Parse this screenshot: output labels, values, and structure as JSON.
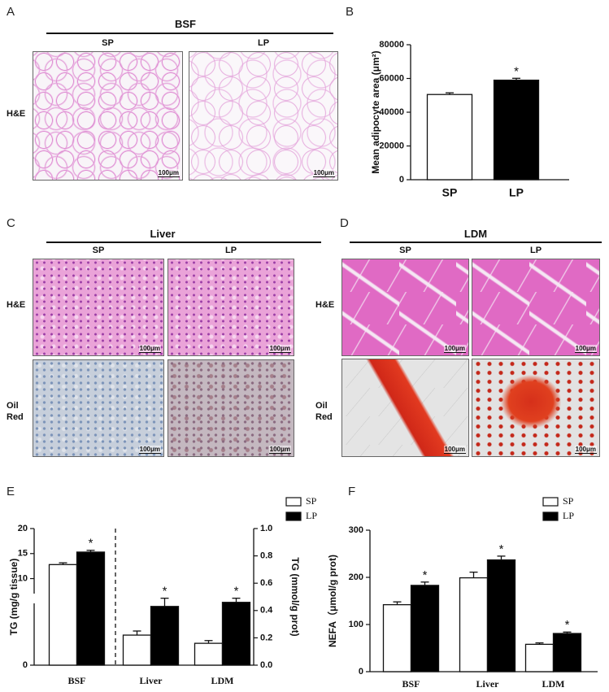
{
  "figure": {
    "A": {
      "label": "A",
      "title": "BSF",
      "columns": [
        "SP",
        "LP"
      ],
      "rows": [
        "H&E"
      ],
      "scale_bar": "100μm"
    },
    "C": {
      "label": "C",
      "title": "Liver",
      "columns": [
        "SP",
        "LP"
      ],
      "rows": [
        "H&E",
        "Oil Red"
      ],
      "scale_bar": "100μm"
    },
    "D": {
      "label": "D",
      "title": "LDM",
      "columns": [
        "SP",
        "LP"
      ],
      "rows": [
        "H&E",
        "Oil Red"
      ],
      "scale_bar": "100μm"
    }
  },
  "chart_data": [
    {
      "panel": "B",
      "type": "bar",
      "ylabel": "Mean adipocyte area (μm²)",
      "categories": [
        "SP",
        "LP"
      ],
      "values": [
        50500,
        59000
      ],
      "errors": [
        1000,
        1100
      ],
      "colors": [
        "#ffffff",
        "#000000"
      ],
      "labels": [
        null,
        "*"
      ],
      "ylim": [
        0,
        80000
      ],
      "yticks": [
        0,
        20000,
        40000,
        60000,
        80000
      ]
    },
    {
      "panel": "E",
      "type": "bar",
      "ylabel": "TG (mg/g tissue)",
      "y2label": "TG (mmol/g prot)",
      "categories": [
        "BSF",
        "Liver",
        "LDM"
      ],
      "category_axis": [
        "y",
        "y2",
        "y2"
      ],
      "series": [
        {
          "name": "SP",
          "color": "#ffffff",
          "values": [
            12.8,
            0.22,
            0.16
          ],
          "errors": [
            0.35,
            0.03,
            0.02
          ]
        },
        {
          "name": "LP",
          "color": "#000000",
          "values": [
            15.3,
            0.43,
            0.46
          ],
          "errors": [
            0.35,
            0.06,
            0.03
          ],
          "labels": [
            "*",
            "*",
            "*"
          ]
        }
      ],
      "ylim": [
        0,
        20
      ],
      "ybreak": [
        5,
        7
      ],
      "yticks": [
        0,
        10,
        15,
        20
      ],
      "y2lim": [
        0,
        1
      ],
      "y2ticks": [
        {
          "value": 0,
          "label": "0.0"
        },
        0.2,
        0.4,
        0.6,
        0.8,
        {
          "value": 1,
          "label": "1.0"
        }
      ],
      "legend": "top-right"
    },
    {
      "panel": "F",
      "type": "bar",
      "ylabel": "NEFA（μmol/g prot)",
      "categories": [
        "BSF",
        "Liver",
        "LDM"
      ],
      "series": [
        {
          "name": "SP",
          "color": "#ffffff",
          "values": [
            142,
            199,
            58
          ],
          "errors": [
            6,
            12,
            3
          ]
        },
        {
          "name": "LP",
          "color": "#000000",
          "values": [
            183,
            237,
            81
          ],
          "errors": [
            7,
            8,
            3
          ],
          "labels": [
            "*",
            "*",
            "*"
          ]
        }
      ],
      "ylim": [
        0,
        300
      ],
      "yticks": [
        0,
        100,
        200,
        300
      ],
      "legend": "top-right"
    }
  ]
}
